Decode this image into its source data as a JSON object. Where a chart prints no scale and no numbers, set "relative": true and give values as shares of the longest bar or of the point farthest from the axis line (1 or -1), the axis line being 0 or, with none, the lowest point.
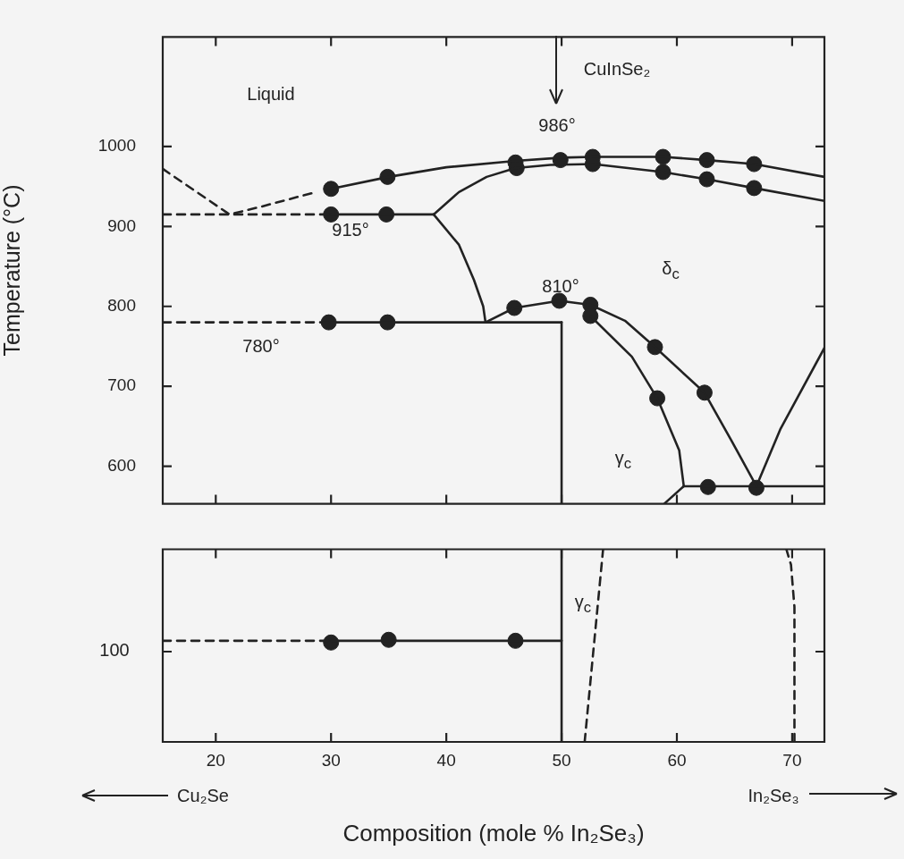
{
  "chart_data": [
    {
      "type": "line",
      "ylabel": "Temperature (°C)",
      "xlim": [
        15.4,
        72.8
      ],
      "xticks": [
        20,
        30,
        40,
        50,
        60,
        70
      ],
      "ylim": [
        553,
        1137
      ],
      "yticks": [
        600,
        700,
        800,
        900,
        1000
      ],
      "tick_labels": "y",
      "series": [
        {
          "type": "line",
          "color": "#222222",
          "line_style": "dashed",
          "marker": "none",
          "x": [
            15.4,
            21.2,
            24,
            28.7
          ],
          "values": [
            972,
            915,
            925,
            943
          ]
        },
        {
          "type": "line",
          "color": "#222222",
          "line_style": "solid",
          "marker": "none",
          "x": [
            30,
            35,
            40,
            46,
            50,
            52.7,
            58.8,
            62.6,
            66.7,
            72.8
          ],
          "values": [
            947,
            962,
            974,
            982,
            986,
            987,
            987,
            983,
            978,
            962
          ]
        },
        {
          "type": "line",
          "color": "#222222",
          "line_style": "solid",
          "marker": "none",
          "x": [
            38.9,
            41.1,
            43.5,
            46,
            49,
            52.7,
            58.8,
            62.6,
            66.7,
            72.8
          ],
          "values": [
            915,
            943,
            962,
            973,
            977,
            978,
            968,
            959,
            948,
            932
          ]
        },
        {
          "type": "line",
          "color": "#222222",
          "line_style": "dashed",
          "marker": "none",
          "x": [
            15.4,
            30
          ],
          "values": [
            915,
            915
          ]
        },
        {
          "type": "line",
          "color": "#222222",
          "line_style": "solid",
          "marker": "none",
          "x": [
            30,
            38.9
          ],
          "values": [
            915,
            915
          ]
        },
        {
          "type": "line",
          "color": "#222222",
          "line_style": "solid",
          "marker": "none",
          "x": [
            38.9,
            41.1,
            42.4,
            43.2,
            43.4
          ],
          "values": [
            915,
            877,
            833,
            800,
            780
          ]
        },
        {
          "type": "line",
          "color": "#222222",
          "line_style": "dashed",
          "marker": "none",
          "x": [
            15.4,
            30
          ],
          "values": [
            780,
            780
          ]
        },
        {
          "type": "line",
          "color": "#222222",
          "line_style": "solid",
          "marker": "none",
          "x": [
            30,
            50
          ],
          "values": [
            780,
            780
          ]
        },
        {
          "type": "line",
          "color": "#222222",
          "line_style": "solid",
          "marker": "none",
          "x": [
            50,
            50
          ],
          "values": [
            780,
            553
          ]
        },
        {
          "type": "line",
          "color": "#222222",
          "line_style": "solid",
          "marker": "none",
          "x": [
            43.4,
            45.9,
            49.8,
            52.5,
            55.5,
            58.1,
            62.4,
            64.7,
            66.9
          ],
          "values": [
            780,
            798,
            807,
            802,
            782,
            749,
            692,
            633,
            575
          ]
        },
        {
          "type": "line",
          "color": "#222222",
          "line_style": "solid",
          "marker": "none",
          "x": [
            52.5,
            56.1,
            58.3,
            60.2,
            60.6
          ],
          "values": [
            788,
            737,
            685,
            620,
            575
          ]
        },
        {
          "type": "line",
          "color": "#222222",
          "line_style": "solid",
          "marker": "none",
          "x": [
            60.6,
            72.8
          ],
          "values": [
            575,
            575
          ]
        },
        {
          "type": "line",
          "color": "#222222",
          "line_style": "solid",
          "marker": "none",
          "x": [
            58.9,
            60.6
          ],
          "values": [
            553,
            575
          ]
        },
        {
          "type": "line",
          "color": "#222222",
          "line_style": "solid",
          "marker": "none",
          "x": [
            66.9,
            69,
            72.8
          ],
          "values": [
            575,
            647,
            748
          ]
        },
        {
          "type": "scatter",
          "color": "#222222",
          "marker": "circle",
          "x": [
            30,
            34.9,
            46,
            46.1,
            49.9,
            52.7,
            52.7,
            58.8,
            58.8,
            62.6,
            62.6,
            66.7,
            66.7,
            30,
            34.8,
            29.8,
            34.9,
            45.9,
            49.8,
            52.5,
            52.5,
            58.1,
            58.3,
            62.4,
            62.7,
            66.9
          ],
          "values": [
            947,
            962,
            980,
            973,
            983,
            987,
            978,
            987,
            968,
            983,
            959,
            978,
            948,
            915,
            915,
            780,
            780,
            798,
            807,
            802,
            788,
            749,
            685,
            692,
            574,
            573
          ]
        }
      ],
      "annotations": [
        "Liquid",
        "CuInSe₂",
        "986°",
        "915°",
        "810°",
        "780°",
        "δ$_{c}$",
        "γ$_{c}$"
      ]
    },
    {
      "type": "line",
      "xlabel": "Composition (mole % In₂Se₃)",
      "xlim": [
        15.4,
        72.8
      ],
      "xticks": [
        20,
        30,
        40,
        50,
        60,
        70
      ],
      "relative": true,
      "series": [
        {
          "type": "line",
          "color": "#222222",
          "line_style": "dashed",
          "marker": "none",
          "x": [
            15.4,
            30
          ],
          "values": [
            0.525,
            0.525
          ]
        },
        {
          "type": "line",
          "color": "#222222",
          "line_style": "solid",
          "marker": "none",
          "x": [
            30,
            50
          ],
          "values": [
            0.525,
            0.525
          ]
        },
        {
          "type": "line",
          "color": "#222222",
          "line_style": "solid",
          "marker": "none",
          "x": [
            50,
            50
          ],
          "values": [
            0,
            1
          ]
        },
        {
          "type": "line",
          "color": "#222222",
          "line_style": "dashed",
          "marker": "none",
          "x": [
            52,
            53.6
          ],
          "values": [
            0,
            1
          ]
        },
        {
          "type": "line",
          "color": "#222222",
          "line_style": "dashed",
          "marker": "none",
          "x": [
            70.2,
            70.2,
            69.9,
            69.5
          ],
          "values": [
            0,
            0.7,
            0.92,
            1
          ]
        },
        {
          "type": "scatter",
          "color": "#222222",
          "marker": "circle",
          "x": [
            30,
            35,
            46
          ],
          "values": [
            0.516,
            0.53,
            0.525
          ]
        }
      ],
      "annotations": [
        "γ$_{c}$",
        "100",
        "Cu₂Se",
        "In₂Se₃"
      ]
    }
  ]
}
